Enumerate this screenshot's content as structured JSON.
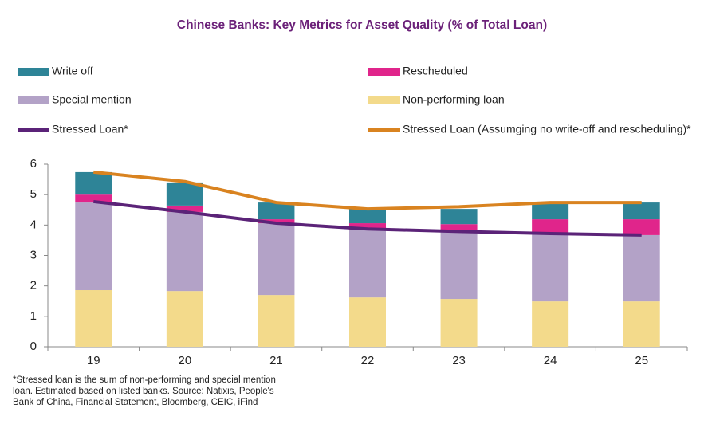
{
  "chart_data": {
    "type": "bar",
    "stacked": true,
    "title": "Chinese Banks: Key Metrics for Asset Quality (% of Total Loan)",
    "footnote": "*Stressed loan is the sum of non-performing and special mention loan. Estimated based on listed banks. Source: Natixis, People's Bank of China, Financial Statement, Bloomberg, CEIC, iFind",
    "categories": [
      "19",
      "20",
      "21",
      "22",
      "23",
      "24",
      "25"
    ],
    "ylim": [
      0,
      6
    ],
    "yticks": [
      0,
      1,
      2,
      3,
      4,
      5,
      6
    ],
    "grid": false,
    "series": [
      {
        "name": "Write off",
        "type": "bar",
        "color": "#2e8497",
        "values": [
          0.74,
          0.76,
          0.55,
          0.47,
          0.5,
          0.55,
          0.55
        ]
      },
      {
        "name": "Rescheduled",
        "type": "bar",
        "color": "#e0258b",
        "values": [
          0.26,
          0.21,
          0.13,
          0.21,
          0.26,
          0.47,
          0.52
        ]
      },
      {
        "name": "Special mention",
        "type": "bar",
        "color": "#b3a2c7",
        "values": [
          2.88,
          2.6,
          2.36,
          2.23,
          2.2,
          2.23,
          2.18
        ]
      },
      {
        "name": "Non-performing loan",
        "type": "bar",
        "color": "#f3da8b",
        "values": [
          1.86,
          1.83,
          1.7,
          1.62,
          1.57,
          1.49,
          1.49
        ]
      },
      {
        "name": "Stressed Loan*",
        "type": "line",
        "color": "#5b2378",
        "values": [
          4.77,
          4.43,
          4.06,
          3.87,
          3.79,
          3.72,
          3.67
        ]
      },
      {
        "name": "Stressed Loan (Assumging no write-off and rescheduling)*",
        "type": "line",
        "color": "#d98320",
        "values": [
          5.74,
          5.43,
          4.74,
          4.53,
          4.6,
          4.74,
          4.74
        ]
      }
    ]
  }
}
